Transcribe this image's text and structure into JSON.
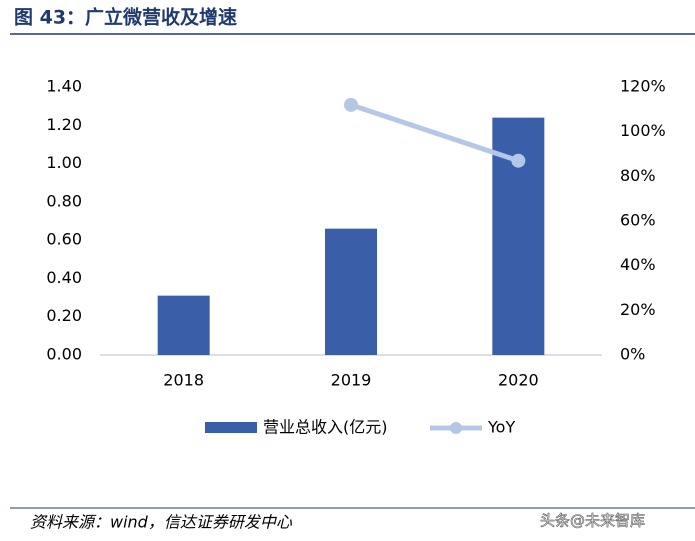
{
  "chart_data": {
    "type": "bar",
    "title": "图 43：广立微营收及增速",
    "categories": [
      "2018",
      "2019",
      "2020"
    ],
    "series": [
      {
        "name": "营业总收入(亿元)",
        "type": "bar",
        "color": "#3a5ea8",
        "values": [
          0.31,
          0.66,
          1.24
        ]
      },
      {
        "name": "YoY",
        "type": "line",
        "axis": "y2",
        "color": "#b4c7e7",
        "values": [
          null,
          112,
          87
        ]
      }
    ],
    "ylim": [
      0,
      1.4
    ],
    "yticks": [
      {
        "value": 0,
        "label": "0.00"
      },
      {
        "value": 0.2,
        "label": "0.20"
      },
      {
        "value": 0.4,
        "label": "0.40"
      },
      {
        "value": 0.6,
        "label": "0.60"
      },
      {
        "value": 0.8,
        "label": "0.80"
      },
      {
        "value": 1.0,
        "label": "1.00"
      },
      {
        "value": 1.2,
        "label": "1.20"
      },
      {
        "value": 1.4,
        "label": "1.40"
      }
    ],
    "y2lim": [
      0,
      120
    ],
    "y2ticks": [
      {
        "value": 0,
        "label": "0%"
      },
      {
        "value": 20,
        "label": "20%"
      },
      {
        "value": 40,
        "label": "40%"
      },
      {
        "value": 60,
        "label": "60%"
      },
      {
        "value": 80,
        "label": "80%"
      },
      {
        "value": 100,
        "label": "100%"
      },
      {
        "value": 120,
        "label": "120%"
      }
    ],
    "source": "资料来源：wind，信达证券研发中心",
    "watermark": "头条@未来智库"
  }
}
